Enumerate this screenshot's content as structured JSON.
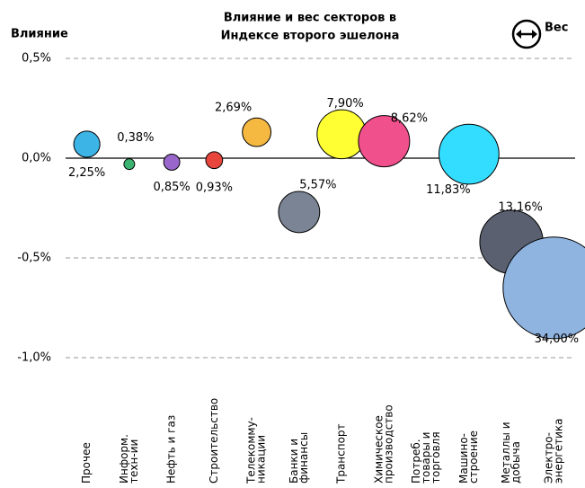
{
  "chart_data": {
    "type": "bubble",
    "title": [
      "Влияние и вес секторов  в",
      "Индексе второго эшелона"
    ],
    "ylabel": "Влияние",
    "size_legend": "Вес",
    "categories": [
      [
        "Прочее"
      ],
      [
        "Информ.",
        "техн-ии"
      ],
      [
        "Нефть и газ"
      ],
      [
        "Строительство"
      ],
      [
        "Телекомму-",
        "никации"
      ],
      [
        "Банки и",
        "финансы"
      ],
      [
        "Транспорт"
      ],
      [
        "Химическое",
        "производство"
      ],
      [
        "Потреб.",
        "товары и",
        "торговля"
      ],
      [
        "Машино-",
        "строение"
      ],
      [
        "Металлы и",
        "добыча"
      ],
      [
        "Электро-",
        "энергетика"
      ]
    ],
    "values": [
      0.07,
      -0.03,
      -0.02,
      -0.01,
      0.13,
      -0.27,
      0.12,
      0.085,
      null,
      0.02,
      -0.42,
      -0.65
    ],
    "sizes": [
      2.25,
      0.38,
      0.85,
      0.93,
      2.69,
      5.57,
      7.9,
      8.62,
      null,
      11.83,
      13.16,
      34.0
    ],
    "size_labels": [
      "2,25%",
      "0,38%",
      "0,85%",
      "0,93%",
      "2,69%",
      "5,57%",
      "7,90%",
      "8,62%",
      null,
      "11,83%",
      "13,16%",
      "34,00%"
    ],
    "colors": [
      "#3cb4e6",
      "#3cb371",
      "#9966cc",
      "#e8463c",
      "#f5b942",
      "#7a8494",
      "#ffff33",
      "#f0508c",
      null,
      "#33ddff",
      "#5a6070",
      "#8fb4e0"
    ],
    "ylim": [
      -1.0,
      0.5
    ],
    "yticks": [
      {
        "value": 0.5,
        "label": "0,5%"
      },
      {
        "value": 0,
        "label": "0,0%"
      },
      {
        "value": -0.5,
        "label": "-0,5%"
      },
      {
        "value": -1.0,
        "label": "-1,0%"
      }
    ],
    "grid": true
  }
}
